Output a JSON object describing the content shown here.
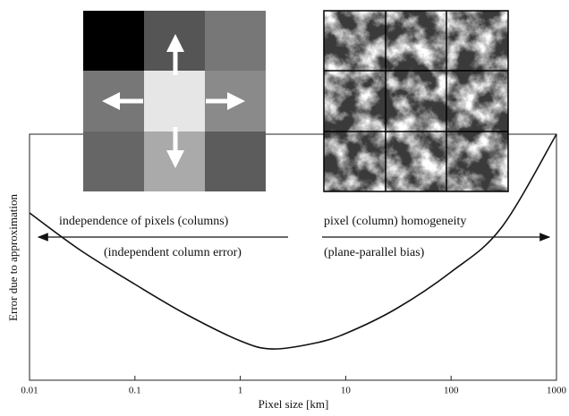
{
  "chart_data": {
    "type": "line",
    "x_label": "Pixel size [km]",
    "y_label": "Error due to approximation",
    "x": [
      0.01,
      0.03,
      0.1,
      0.3,
      1,
      2,
      5,
      10,
      30,
      100,
      300,
      1000
    ],
    "values": [
      0.68,
      0.53,
      0.39,
      0.27,
      0.16,
      0.127,
      0.15,
      0.19,
      0.29,
      0.44,
      0.62,
      1.0
    ],
    "color": "#111",
    "xscale": "log",
    "xlim": [
      0.01,
      1000
    ],
    "ylim": [
      0,
      1
    ],
    "xticks": [
      0.01,
      0.1,
      1,
      10,
      100,
      1000
    ],
    "annotations": [
      "independence of pixels (columns)",
      "(independent column error)",
      "pixel (column) homogeneity",
      "(plane-parallel bias)"
    ]
  }
}
